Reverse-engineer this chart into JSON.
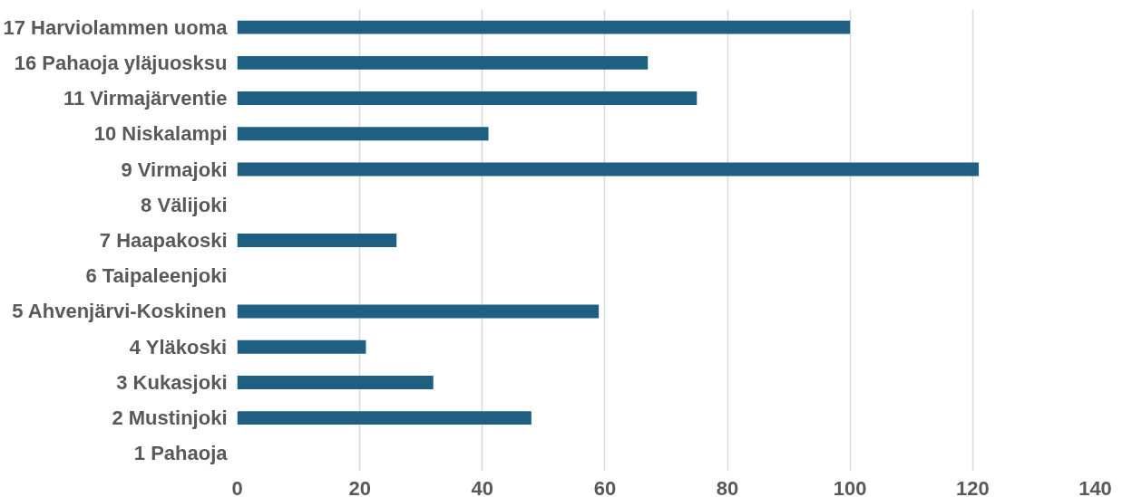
{
  "chart_data": {
    "type": "bar",
    "orientation": "horizontal",
    "categories": [
      "17 Harviolammen uoma",
      "16 Pahaoja yläjuosksu",
      "11 Virmajärventie",
      "10 Niskalampi",
      "9 Virmajoki",
      "8 Välijoki",
      "7 Haapakoski",
      "6 Taipaleenjoki",
      "5 Ahvenjärvi-Koskinen",
      "4 Yläkoski",
      "3 Kukasjoki",
      "2 Mustinjoki",
      "1 Pahaoja"
    ],
    "values": [
      100,
      67,
      75,
      41,
      121,
      null,
      26,
      null,
      59,
      21,
      32,
      48,
      null
    ],
    "color": "#1f5f82",
    "xlim": [
      0,
      140
    ],
    "xticks": [
      0,
      20,
      40,
      60,
      80,
      100,
      120,
      140
    ],
    "grid": "x"
  }
}
